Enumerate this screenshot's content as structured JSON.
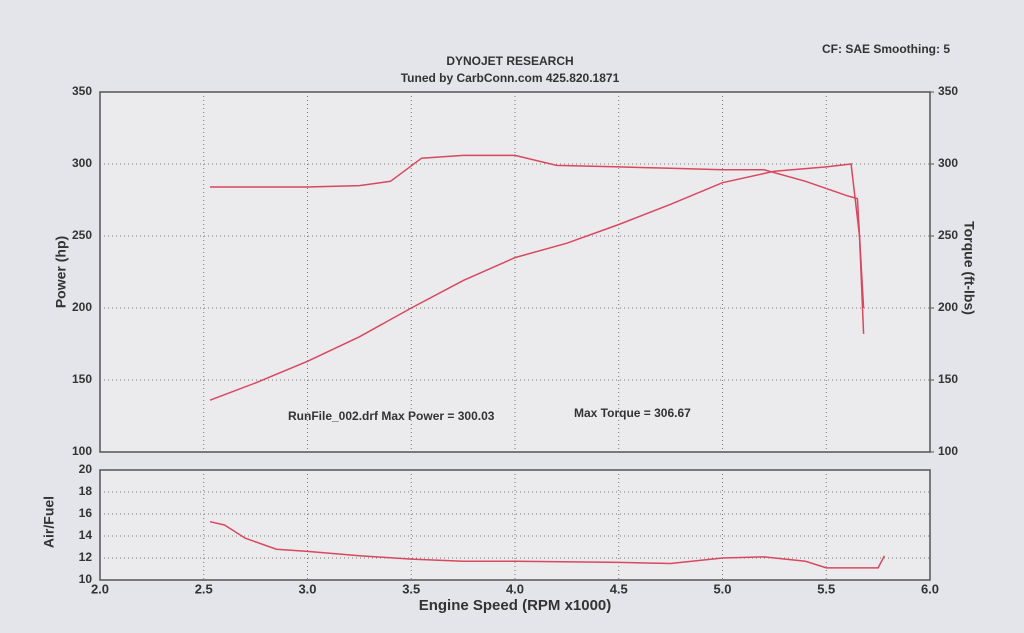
{
  "chart_data": [
    {
      "type": "line",
      "title": "DYNOJET RESEARCH",
      "subtitle": "Tuned by CarbConn.com 425.820.1871",
      "note": "CF: SAE  Smoothing: 5",
      "annotations": [
        "RunFile_002.drf Max Power = 300.03",
        "Max Torque = 306.67"
      ],
      "ylabel": "Power (hp)",
      "y2label": "Torque (ft-lbs)",
      "xlim": [
        2,
        6
      ],
      "ylim": [
        100,
        350
      ],
      "yticks": [
        100,
        150,
        200,
        250,
        300,
        350
      ],
      "y2lim": [
        100,
        350
      ],
      "y2ticks": [
        100,
        150,
        200,
        250,
        300,
        350
      ],
      "grid": true,
      "series": [
        {
          "name": "Power",
          "color": "#d8485e",
          "axis": "y",
          "x": [
            2.53,
            2.75,
            3.0,
            3.25,
            3.5,
            3.75,
            4.0,
            4.25,
            4.5,
            4.75,
            5.0,
            5.25,
            5.5,
            5.62,
            5.66,
            5.68
          ],
          "values": [
            136,
            148,
            163,
            180,
            200,
            219,
            235,
            245,
            258,
            272,
            287,
            295,
            298,
            300,
            250,
            182
          ]
        },
        {
          "name": "Torque",
          "color": "#d8485e",
          "axis": "y2",
          "x": [
            2.53,
            2.75,
            3.0,
            3.25,
            3.4,
            3.55,
            3.75,
            4.0,
            4.2,
            4.5,
            4.75,
            5.0,
            5.2,
            5.4,
            5.6,
            5.65,
            5.68
          ],
          "values": [
            284,
            284,
            284,
            285,
            288,
            304,
            306,
            306,
            299,
            298,
            297,
            296,
            296,
            288,
            278,
            276,
            200
          ]
        }
      ]
    },
    {
      "type": "line",
      "ylabel": "Air/Fuel",
      "xlabel": "Engine Speed (RPM x1000)",
      "xlim": [
        2,
        6
      ],
      "xticks": [
        {
          "value": 2,
          "label": "2.0"
        },
        {
          "value": 2.5,
          "label": "2.5"
        },
        {
          "value": 3,
          "label": "3.0"
        },
        {
          "value": 3.5,
          "label": "3.5"
        },
        {
          "value": 4,
          "label": "4.0"
        },
        {
          "value": 4.5,
          "label": "4.5"
        },
        {
          "value": 5,
          "label": "5.0"
        },
        {
          "value": 5.5,
          "label": "5.5"
        },
        {
          "value": 6,
          "label": "6.0"
        }
      ],
      "ylim": [
        10,
        20
      ],
      "yticks": [
        10,
        12,
        14,
        16,
        18,
        20
      ],
      "grid": true,
      "series": [
        {
          "name": "Air/Fuel",
          "color": "#d8485e",
          "x": [
            2.53,
            2.6,
            2.7,
            2.85,
            3.0,
            3.25,
            3.5,
            3.75,
            4.0,
            4.5,
            4.75,
            5.0,
            5.2,
            5.4,
            5.5,
            5.75,
            5.78
          ],
          "values": [
            15.3,
            15.0,
            13.8,
            12.8,
            12.6,
            12.2,
            11.9,
            11.7,
            11.7,
            11.6,
            11.5,
            12.0,
            12.1,
            11.7,
            11.1,
            11.1,
            12.2
          ]
        }
      ]
    }
  ]
}
